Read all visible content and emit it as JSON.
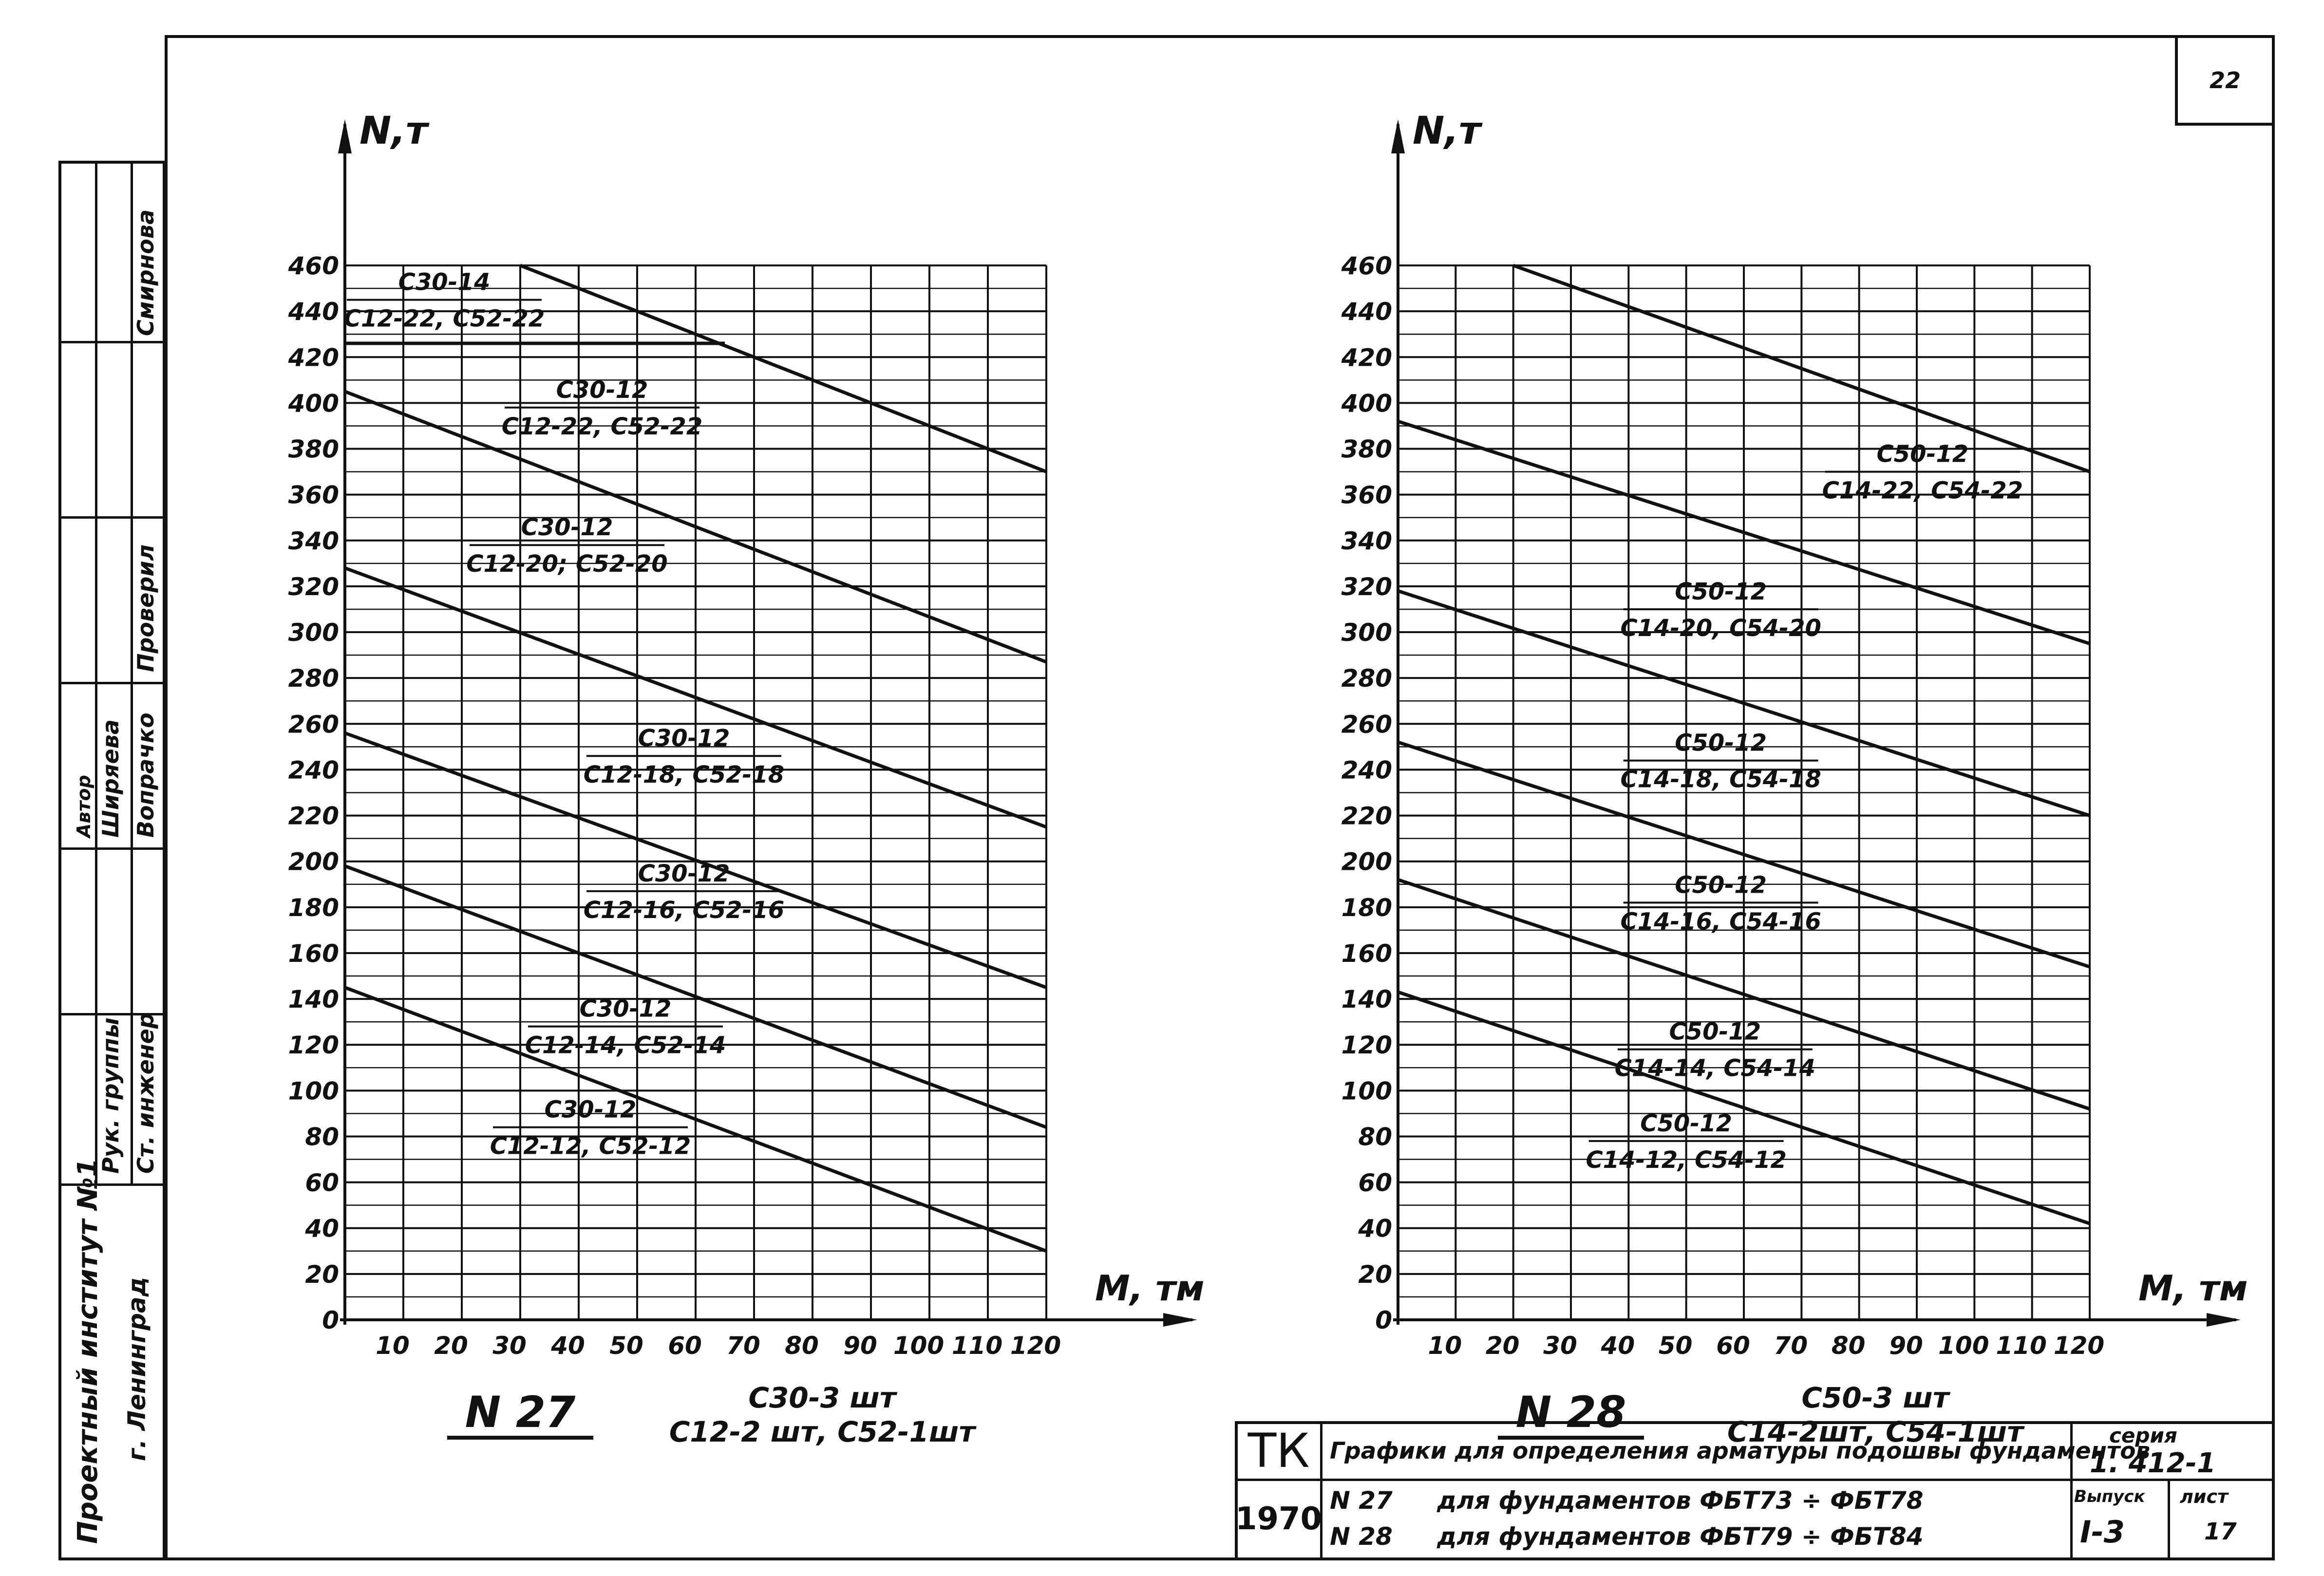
{
  "sheet_number": "22",
  "left_stamp": {
    "institute": "Проектный институт №1",
    "city": "г. Ленинград",
    "roles": [
      "Ст. инженер",
      "Рук. группы",
      "Проверил",
      "Автор"
    ],
    "names": [
      "Вопрачко",
      "Ширяева",
      "Смирнова"
    ]
  },
  "title_block": {
    "tk": "ТК",
    "year": "1970",
    "title": "Графики для определения арматуры подошвы фундаментов",
    "line1_num": "N 27",
    "line1_text": "для фундаментов  ФБТ73 ÷ ФБТ78",
    "line2_num": "N 28",
    "line2_text": "для фундаментов  ФБТ79 ÷ ФБТ84",
    "series_label": "серия",
    "series_value": "1. 412-1",
    "issue_label": "Выпуск",
    "issue_value": "I-3",
    "sheet_label": "лист",
    "sheet_value": "17"
  },
  "chart_data": [
    {
      "type": "line",
      "title": "N 27",
      "note_lines": [
        "С30-3 шт",
        "С12-2 шт, С52-1шт"
      ],
      "ylabel": "N,т",
      "xlabel": "М, тм",
      "xlim": [
        0,
        120
      ],
      "ylim": [
        0,
        460
      ],
      "x_ticks": [
        10,
        20,
        30,
        40,
        50,
        60,
        70,
        80,
        90,
        100,
        110,
        120
      ],
      "y_ticks": [
        0,
        20,
        40,
        60,
        80,
        100,
        120,
        140,
        160,
        180,
        200,
        220,
        240,
        260,
        280,
        300,
        320,
        340,
        360,
        380,
        400,
        420,
        440,
        460
      ],
      "grid": true,
      "series": [
        {
          "label_top": "С30-12",
          "label_bottom": "С12-12, С52-12",
          "x": [
            0,
            120
          ],
          "y": [
            145,
            30
          ],
          "label_x": 42,
          "label_y": 84
        },
        {
          "label_top": "С30-12",
          "label_bottom": "С12-14, С52-14",
          "x": [
            0,
            120
          ],
          "y": [
            198,
            84
          ],
          "label_x": 48,
          "label_y": 128
        },
        {
          "label_top": "С30-12",
          "label_bottom": "С12-16, С52-16",
          "x": [
            0,
            120
          ],
          "y": [
            256,
            145
          ],
          "label_x": 58,
          "label_y": 187
        },
        {
          "label_top": "С30-12",
          "label_bottom": "С12-18, С52-18",
          "x": [
            0,
            120
          ],
          "y": [
            328,
            215
          ],
          "label_x": 58,
          "label_y": 246
        },
        {
          "label_top": "С30-12",
          "label_bottom": "С12-20; С52-20",
          "x": [
            0,
            120
          ],
          "y": [
            405,
            287
          ],
          "label_x": 38,
          "label_y": 338
        },
        {
          "label_top": "С30-12",
          "label_bottom": "С12-22, С52-22",
          "x": [
            30,
            120
          ],
          "y": [
            460,
            370
          ],
          "label_x": 44,
          "label_y": 398
        },
        {
          "label_top": "С30-14",
          "label_bottom": "С12-22, С52-22",
          "x": [
            0,
            65
          ],
          "y": [
            426,
            426
          ],
          "label_x": 17,
          "label_y": 445
        }
      ]
    },
    {
      "type": "line",
      "title": "N 28",
      "note_lines": [
        "С50-3 шт",
        "С14-2шт, С54-1шт"
      ],
      "ylabel": "N,т",
      "xlabel": "М, тм",
      "xlim": [
        0,
        120
      ],
      "ylim": [
        0,
        460
      ],
      "x_ticks": [
        10,
        20,
        30,
        40,
        50,
        60,
        70,
        80,
        90,
        100,
        110,
        120
      ],
      "y_ticks": [
        0,
        20,
        40,
        60,
        80,
        100,
        120,
        140,
        160,
        180,
        200,
        220,
        240,
        260,
        280,
        300,
        320,
        340,
        360,
        380,
        400,
        420,
        440,
        460
      ],
      "grid": true,
      "series": [
        {
          "label_top": "С50-12",
          "label_bottom": "С14-12, С54-12",
          "x": [
            0,
            120
          ],
          "y": [
            143,
            42
          ],
          "label_x": 50,
          "label_y": 78
        },
        {
          "label_top": "С50-12",
          "label_bottom": "С14-14, С54-14",
          "x": [
            0,
            120
          ],
          "y": [
            192,
            92
          ],
          "label_x": 55,
          "label_y": 118
        },
        {
          "label_top": "С50-12",
          "label_bottom": "С14-16, С54-16",
          "x": [
            0,
            120
          ],
          "y": [
            252,
            154
          ],
          "label_x": 56,
          "label_y": 182
        },
        {
          "label_top": "С50-12",
          "label_bottom": "С14-18, С54-18",
          "x": [
            0,
            120
          ],
          "y": [
            318,
            220
          ],
          "label_x": 56,
          "label_y": 244
        },
        {
          "label_top": "С50-12",
          "label_bottom": "С14-20, С54-20",
          "x": [
            0,
            120
          ],
          "y": [
            392,
            295
          ],
          "label_x": 56,
          "label_y": 310
        },
        {
          "label_top": "С50-12",
          "label_bottom": "С14-22, С54-22",
          "x": [
            20,
            120
          ],
          "y": [
            460,
            370
          ],
          "label_x": 91,
          "label_y": 370
        }
      ]
    }
  ]
}
